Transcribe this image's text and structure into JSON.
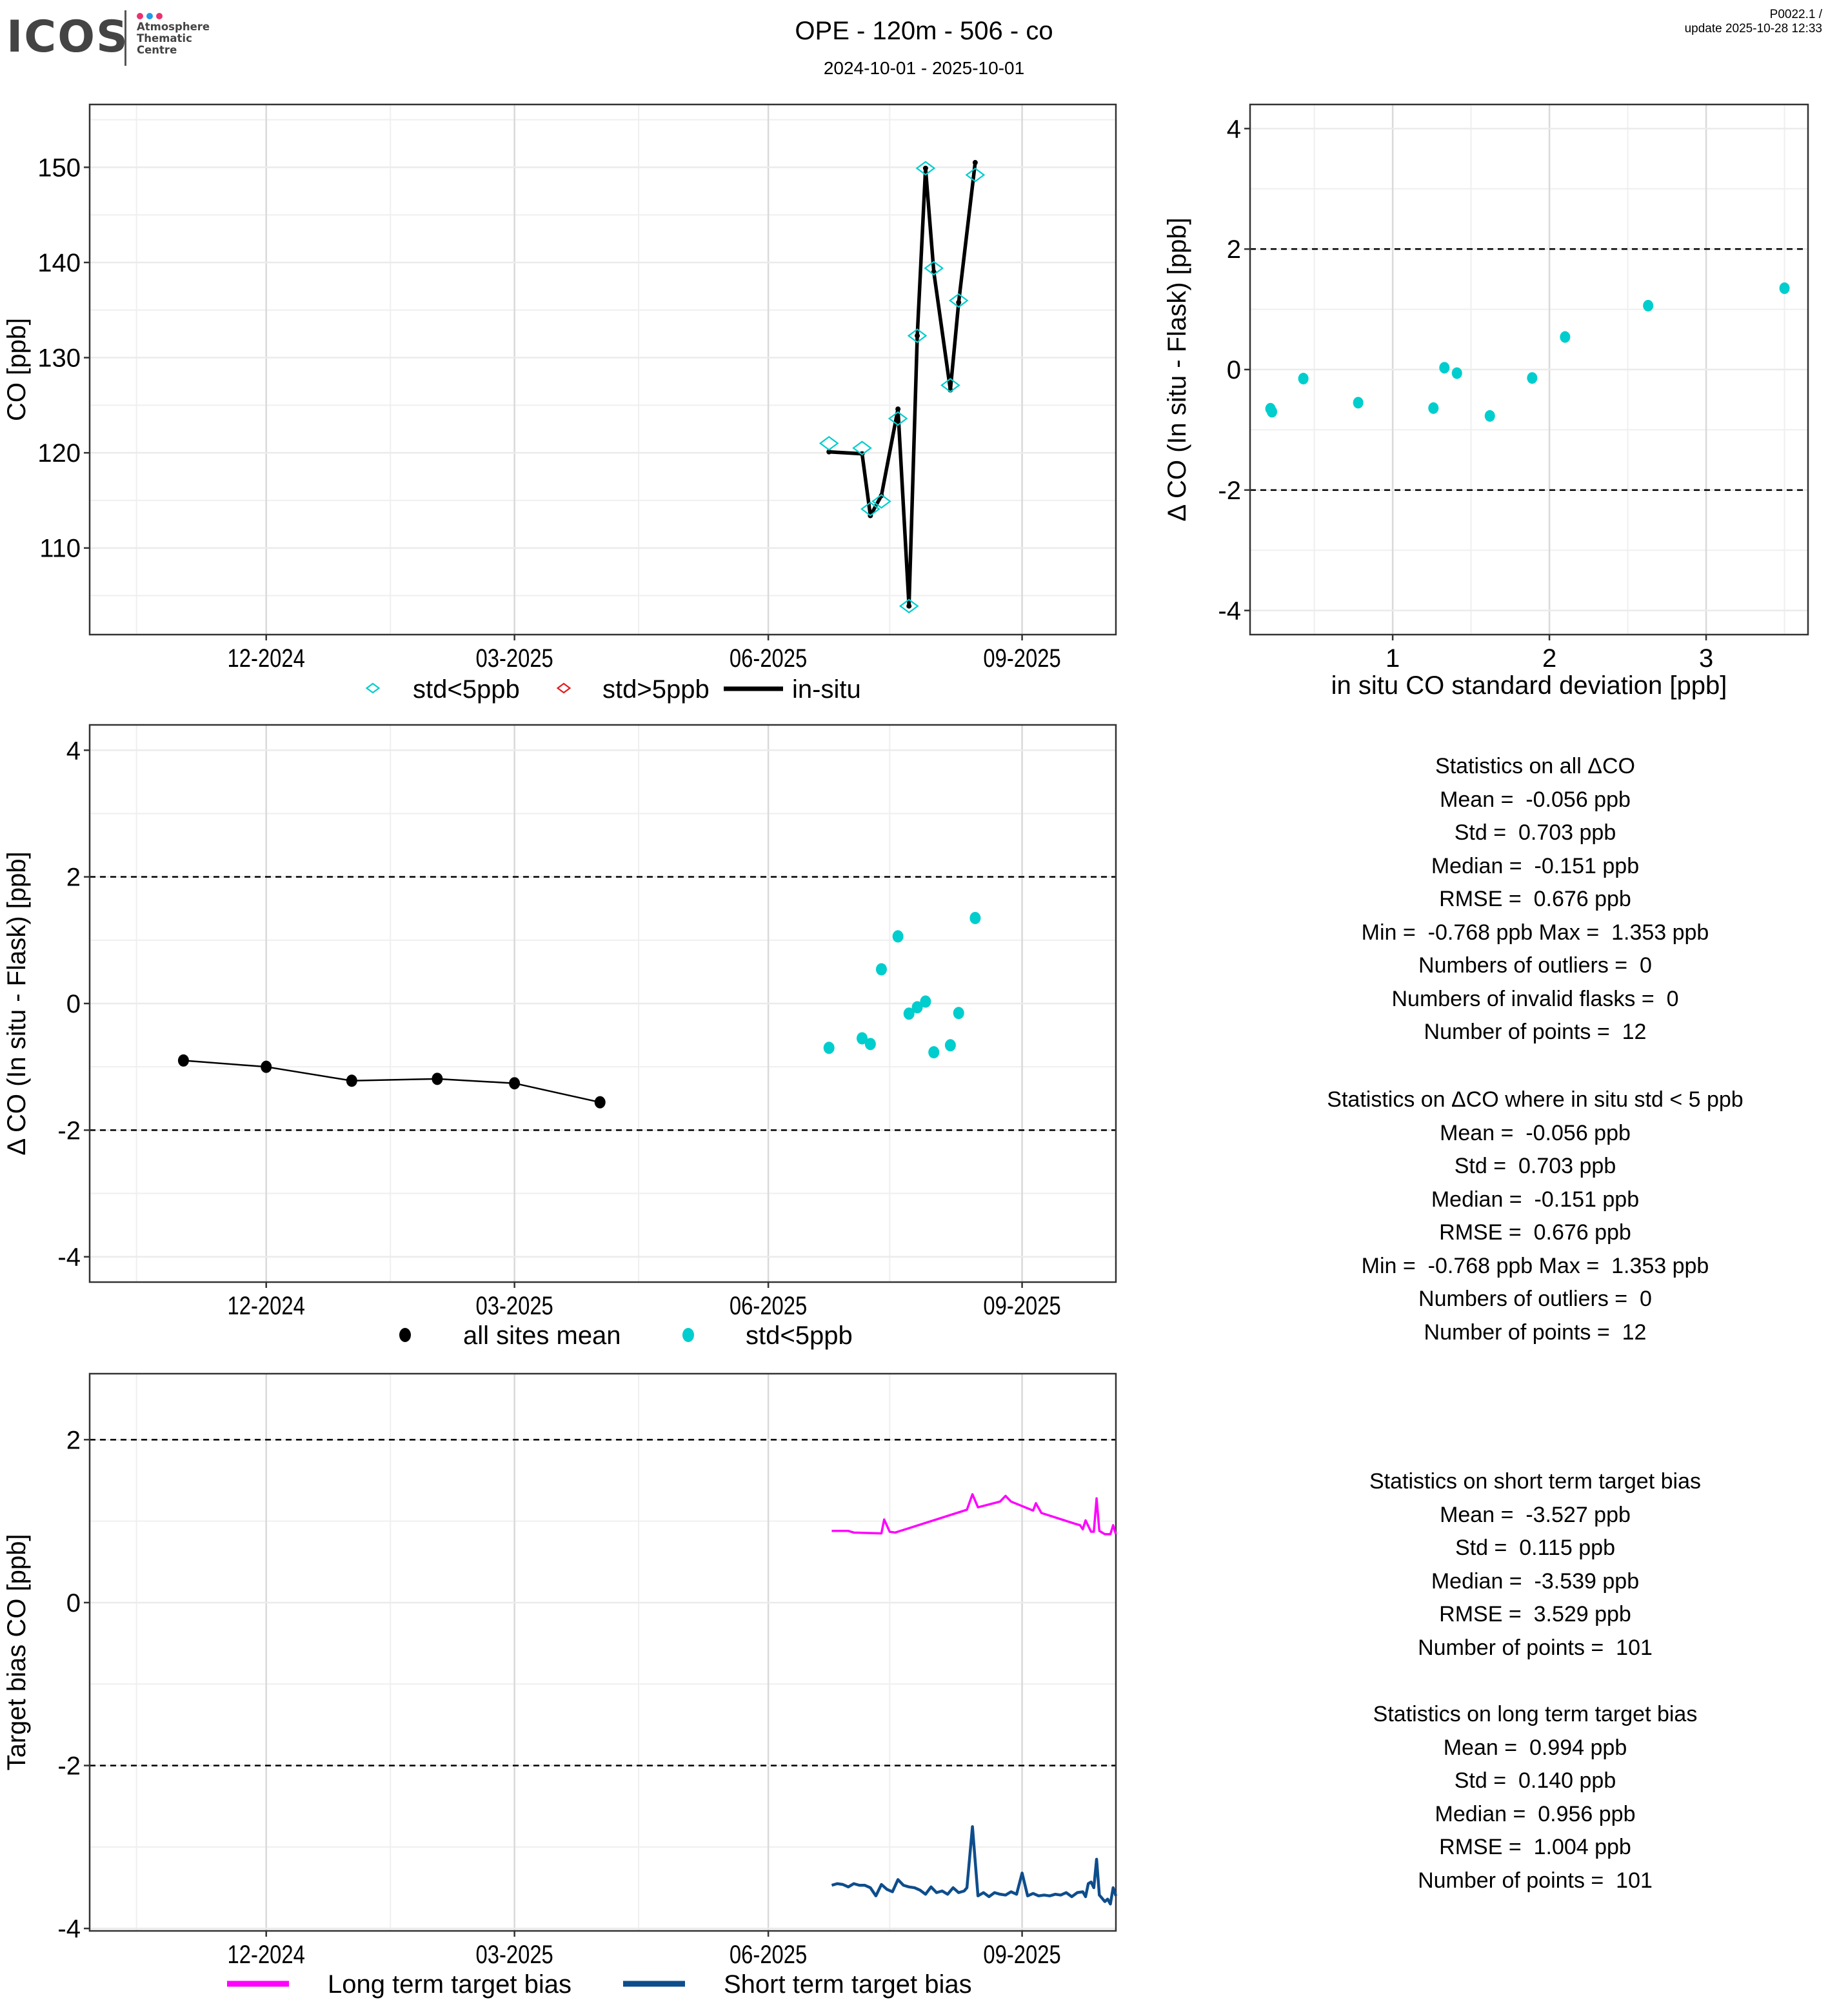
{
  "header": {
    "logo_text": "ICOS",
    "logo_subtitle": [
      "Atmosphere",
      "Thematic",
      "Centre"
    ],
    "logo_dot_colors": [
      "#e8336d",
      "#1e9be9",
      "#e8336d"
    ],
    "title": "OPE - 120m - 506 - co",
    "date_range": "2024-10-01 - 2025-10-01",
    "version": "P0022.1 /",
    "update": "update  2025-10-28 12:33"
  },
  "colors": {
    "cyan": "#00CDCD",
    "red": "#E41A1C",
    "black": "#000000",
    "magenta": "#FF00FF",
    "navy": "#0E4D8C",
    "grid_major": "#D9D9D9",
    "grid_minor": "#EFEFEF"
  },
  "chart_data": [
    {
      "id": "co_timeseries",
      "type": "line",
      "title": "",
      "xlabel": "",
      "ylabel": "CO [ppb]",
      "xlim": [
        "2024-09-28",
        "2025-10-05"
      ],
      "ylim": [
        100.9,
        156.6
      ],
      "x_ticks": [
        {
          "date": "2024-12-01",
          "label": "12-2024"
        },
        {
          "date": "2025-03-01",
          "label": "03-2025"
        },
        {
          "date": "2025-06-01",
          "label": "06-2025"
        },
        {
          "date": "2025-09-01",
          "label": "09-2025"
        }
      ],
      "x_minor": [
        "2024-10-15",
        "2025-01-15",
        "2025-04-15",
        "2025-07-15"
      ],
      "y_ticks": [
        110,
        120,
        130,
        140,
        150
      ],
      "y_minor": [
        105,
        115,
        125,
        135,
        145,
        155
      ],
      "legend": [
        {
          "label": "std<5ppb",
          "marker": "diamond-open",
          "color": "#00CDCD"
        },
        {
          "label": "std>5ppb",
          "marker": "diamond-open",
          "color": "#E41A1C"
        },
        {
          "label": "in-situ",
          "marker": "line",
          "color": "#000000"
        }
      ],
      "legend_position": "bottom",
      "series": [
        {
          "name": "in-situ",
          "x": [
            "2025-06-23",
            "2025-07-05",
            "2025-07-08",
            "2025-07-12",
            "2025-07-18",
            "2025-07-22",
            "2025-07-25",
            "2025-07-28",
            "2025-07-31",
            "2025-08-06",
            "2025-08-09",
            "2025-08-15"
          ],
          "values": [
            120.1,
            119.9,
            113.4,
            115.5,
            124.6,
            103.9,
            132.3,
            149.9,
            139.0,
            126.6,
            135.8,
            150.5
          ]
        },
        {
          "name": "std<5ppb",
          "x": [
            "2025-06-23",
            "2025-07-05",
            "2025-07-08",
            "2025-07-12",
            "2025-07-18",
            "2025-07-22",
            "2025-07-25",
            "2025-07-28",
            "2025-07-31",
            "2025-08-06",
            "2025-08-09",
            "2025-08-15"
          ],
          "values": [
            121.0,
            120.5,
            114.1,
            114.9,
            123.6,
            103.9,
            132.3,
            149.9,
            139.4,
            127.1,
            136.0,
            149.2
          ]
        },
        {
          "name": "std>5ppb",
          "x": [],
          "values": []
        }
      ]
    },
    {
      "id": "delta_vs_std",
      "type": "scatter",
      "xlabel": "in situ CO standard deviation [ppb]",
      "ylabel": "Δ CO (In situ - Flask) [ppb]",
      "xlim": [
        0.09,
        3.65
      ],
      "ylim": [
        -4.4,
        4.4
      ],
      "x_ticks": [
        1,
        2,
        3
      ],
      "x_minor": [
        0.5,
        1.5,
        2.5,
        3.5
      ],
      "y_ticks": [
        -4,
        -2,
        0,
        2,
        4
      ],
      "y_minor": [
        -3,
        -1,
        1,
        3
      ],
      "hlines": [
        2,
        -2
      ],
      "series": [
        {
          "name": "std<5ppb",
          "x": [
            0.22,
            0.23,
            0.43,
            0.78,
            1.26,
            1.33,
            1.41,
            1.62,
            1.89,
            2.1,
            2.63,
            3.5
          ],
          "values": [
            -0.65,
            -0.7,
            -0.15,
            -0.55,
            -0.64,
            0.03,
            -0.06,
            -0.77,
            -0.14,
            0.54,
            1.06,
            1.35
          ]
        }
      ]
    },
    {
      "id": "delta_timeseries",
      "type": "scatter",
      "xlabel": "",
      "ylabel": "Δ CO (In situ - Flask) [ppb]",
      "xlim": [
        "2024-09-28",
        "2025-10-05"
      ],
      "ylim": [
        -4.4,
        4.4
      ],
      "x_ticks": [
        {
          "date": "2024-12-01",
          "label": "12-2024"
        },
        {
          "date": "2025-03-01",
          "label": "03-2025"
        },
        {
          "date": "2025-06-01",
          "label": "06-2025"
        },
        {
          "date": "2025-09-01",
          "label": "09-2025"
        }
      ],
      "x_minor": [
        "2024-10-15",
        "2025-01-15",
        "2025-04-15",
        "2025-07-15"
      ],
      "y_ticks": [
        -4,
        -2,
        0,
        2,
        4
      ],
      "y_minor": [
        -3,
        -1,
        1,
        3
      ],
      "hlines": [
        2,
        -2
      ],
      "legend": [
        {
          "label": "all sites mean",
          "marker": "circle",
          "color": "#000000"
        },
        {
          "label": "std<5ppb",
          "marker": "circle",
          "color": "#00CDCD"
        }
      ],
      "legend_position": "bottom",
      "series": [
        {
          "name": "all sites mean",
          "x": [
            "2024-11-01",
            "2024-12-01",
            "2025-01-01",
            "2025-02-01",
            "2025-03-01",
            "2025-04-01"
          ],
          "values": [
            -0.9,
            -1.0,
            -1.22,
            -1.19,
            -1.26,
            -1.56
          ]
        },
        {
          "name": "std<5ppb",
          "x": [
            "2025-06-23",
            "2025-07-05",
            "2025-07-08",
            "2025-07-12",
            "2025-07-18",
            "2025-07-22",
            "2025-07-25",
            "2025-07-28",
            "2025-07-31",
            "2025-08-06",
            "2025-08-09",
            "2025-08-15"
          ],
          "values": [
            -0.7,
            -0.55,
            -0.64,
            0.54,
            1.06,
            -0.16,
            -0.06,
            0.03,
            -0.77,
            -0.66,
            -0.15,
            1.35
          ]
        }
      ]
    },
    {
      "id": "target_bias",
      "type": "line",
      "xlabel": "",
      "ylabel": "Target bias CO [ppb]",
      "xlim": [
        "2024-09-28",
        "2025-10-05"
      ],
      "ylim": [
        -4.03,
        2.81
      ],
      "x_ticks": [
        {
          "date": "2024-12-01",
          "label": "12-2024"
        },
        {
          "date": "2025-03-01",
          "label": "03-2025"
        },
        {
          "date": "2025-06-01",
          "label": "06-2025"
        },
        {
          "date": "2025-09-01",
          "label": "09-2025"
        }
      ],
      "x_minor": [
        "2024-10-15",
        "2025-01-15",
        "2025-04-15",
        "2025-07-15"
      ],
      "y_ticks": [
        -4,
        -2,
        0,
        2
      ],
      "y_minor": [
        -3,
        -1,
        1
      ],
      "hlines": [
        2,
        -2
      ],
      "legend": [
        {
          "label": "Long term target bias",
          "marker": "line",
          "color": "#FF00FF"
        },
        {
          "label": "Short term target bias",
          "marker": "line",
          "color": "#0E4D8C"
        }
      ],
      "legend_position": "bottom",
      "series": [
        {
          "name": "Long term target bias",
          "x": [
            "2025-06-24",
            "2025-06-30",
            "2025-07-02",
            "2025-07-12",
            "2025-07-13",
            "2025-07-15",
            "2025-07-17",
            "2025-08-12",
            "2025-08-14",
            "2025-08-16",
            "2025-08-24",
            "2025-08-26",
            "2025-08-28",
            "2025-09-05",
            "2025-09-06",
            "2025-09-08",
            "2025-09-20",
            "2025-09-22",
            "2025-09-23",
            "2025-09-24",
            "2025-09-26",
            "2025-09-27",
            "2025-09-28",
            "2025-09-29",
            "2025-09-30",
            "2025-10-01",
            "2025-10-03",
            "2025-10-04",
            "2025-10-05"
          ],
          "values": [
            0.88,
            0.88,
            0.86,
            0.85,
            1.02,
            0.87,
            0.86,
            1.14,
            1.33,
            1.17,
            1.24,
            1.31,
            1.24,
            1.13,
            1.22,
            1.1,
            0.97,
            0.95,
            0.9,
            1.01,
            0.87,
            0.87,
            1.28,
            0.88,
            0.86,
            0.84,
            0.84,
            0.95,
            0.84
          ]
        },
        {
          "name": "Short term target bias",
          "x": [
            "2025-06-24",
            "2025-06-26",
            "2025-06-28",
            "2025-06-30",
            "2025-07-02",
            "2025-07-04",
            "2025-07-06",
            "2025-07-08",
            "2025-07-10",
            "2025-07-12",
            "2025-07-14",
            "2025-07-16",
            "2025-07-18",
            "2025-07-20",
            "2025-07-22",
            "2025-07-24",
            "2025-07-26",
            "2025-07-28",
            "2025-07-30",
            "2025-08-01",
            "2025-08-03",
            "2025-08-05",
            "2025-08-07",
            "2025-08-09",
            "2025-08-11",
            "2025-08-12",
            "2025-08-14",
            "2025-08-16",
            "2025-08-18",
            "2025-08-20",
            "2025-08-22",
            "2025-08-24",
            "2025-08-26",
            "2025-08-28",
            "2025-08-30",
            "2025-09-01",
            "2025-09-03",
            "2025-09-05",
            "2025-09-07",
            "2025-09-09",
            "2025-09-11",
            "2025-09-13",
            "2025-09-15",
            "2025-09-17",
            "2025-09-19",
            "2025-09-21",
            "2025-09-23",
            "2025-09-24",
            "2025-09-25",
            "2025-09-26",
            "2025-09-27",
            "2025-09-28",
            "2025-09-29",
            "2025-09-30",
            "2025-10-01",
            "2025-10-02",
            "2025-10-03",
            "2025-10-04",
            "2025-10-05"
          ],
          "values": [
            -3.47,
            -3.45,
            -3.46,
            -3.49,
            -3.45,
            -3.47,
            -3.47,
            -3.5,
            -3.6,
            -3.46,
            -3.52,
            -3.55,
            -3.4,
            -3.47,
            -3.49,
            -3.5,
            -3.53,
            -3.58,
            -3.49,
            -3.56,
            -3.54,
            -3.58,
            -3.5,
            -3.56,
            -3.54,
            -3.5,
            -2.75,
            -3.6,
            -3.56,
            -3.61,
            -3.56,
            -3.58,
            -3.59,
            -3.55,
            -3.58,
            -3.32,
            -3.6,
            -3.57,
            -3.6,
            -3.59,
            -3.6,
            -3.58,
            -3.59,
            -3.56,
            -3.61,
            -3.56,
            -3.55,
            -3.61,
            -3.45,
            -3.43,
            -3.5,
            -3.15,
            -3.59,
            -3.63,
            -3.67,
            -3.64,
            -3.7,
            -3.5,
            -3.6
          ]
        }
      ]
    }
  ],
  "stats": {
    "all_delta": {
      "title": "Statistics on all ΔCO",
      "lines": [
        "Mean =  -0.056 ppb",
        "Std =  0.703 ppb",
        "Median =  -0.151 ppb",
        "RMSE =  0.676 ppb",
        "Min =  -0.768 ppb Max =  1.353 ppb",
        "Numbers of outliers =  0",
        "Numbers of invalid flasks =  0",
        "Number of points =  12"
      ]
    },
    "std_lt5": {
      "title": "Statistics on ΔCO where in situ std < 5 ppb",
      "lines": [
        "Mean =  -0.056 ppb",
        "Std =  0.703 ppb",
        "Median =  -0.151 ppb",
        "RMSE =  0.676 ppb",
        "Min =  -0.768 ppb Max =  1.353 ppb",
        "Numbers of outliers =  0",
        "Number of points =  12"
      ]
    },
    "short_term": {
      "title": "Statistics on short term target bias",
      "lines": [
        "Mean =  -3.527 ppb",
        "Std =  0.115 ppb",
        "Median =  -3.539 ppb",
        "RMSE =  3.529 ppb",
        "Number of points =  101"
      ]
    },
    "long_term": {
      "title": "Statistics on long term target bias",
      "lines": [
        "Mean =  0.994 ppb",
        "Std =  0.140 ppb",
        "Median =  0.956 ppb",
        "RMSE =  1.004 ppb",
        "Number of points =  101"
      ]
    }
  }
}
